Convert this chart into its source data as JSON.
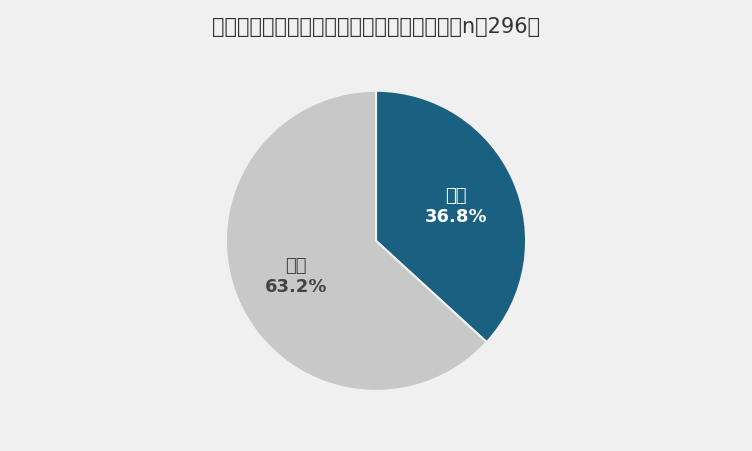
{
  "title": "自宅のトイレに不満や後悔はありますか？（n＝296）",
  "slices": [
    {
      "label": "ある\n36.8%",
      "value": 36.8,
      "color": "#1a6080",
      "text_color": "#ffffff"
    },
    {
      "label": "ない\n63.2%",
      "value": 63.2,
      "color": "#c8c8c8",
      "text_color": "#444444"
    }
  ],
  "start_angle": 90,
  "background_color": "#f0f0f0",
  "title_fontsize": 15,
  "label_fontsize": 13
}
